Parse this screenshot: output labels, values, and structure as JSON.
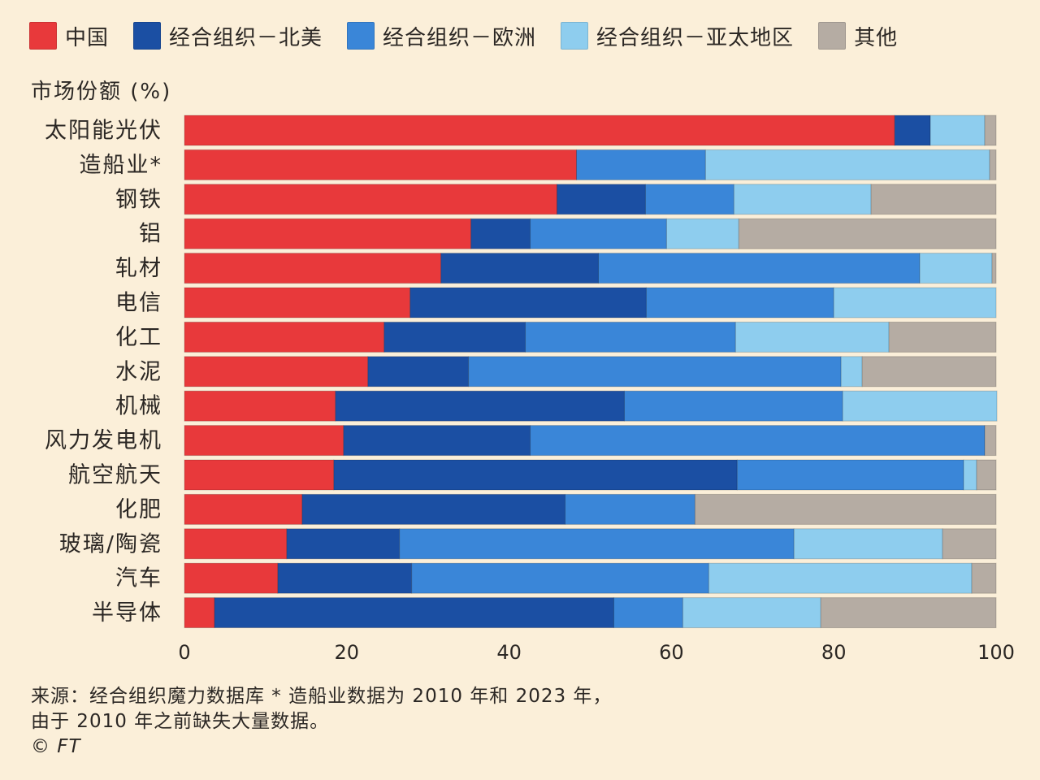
{
  "chart_data": {
    "type": "bar",
    "orientation": "horizontal",
    "stacked": true,
    "ylabel": "市场份额 (%)",
    "xlim": [
      0,
      100
    ],
    "x_ticks": [
      0,
      20,
      40,
      60,
      80,
      100
    ],
    "legend_placement": "top",
    "categories": [
      "太阳能光伏",
      "造船业*",
      "钢铁",
      "铝",
      "轧材",
      "电信",
      "化工",
      "水泥",
      "机械",
      "风力发电机",
      "航空航天",
      "化肥",
      "玻璃/陶瓷",
      "汽车",
      "半导体"
    ],
    "series": [
      {
        "name": "中国",
        "color": "#e8393b",
        "values": [
          87.5,
          48.3,
          45.9,
          35.3,
          31.6,
          27.8,
          24.6,
          22.6,
          18.6,
          19.6,
          18.4,
          14.5,
          12.6,
          11.5,
          3.7
        ]
      },
      {
        "name": "经合组织－北美",
        "color": "#1b4fa3",
        "values": [
          4.4,
          0.0,
          10.9,
          7.3,
          19.4,
          29.1,
          17.4,
          12.4,
          35.6,
          23.0,
          49.7,
          32.4,
          13.9,
          16.5,
          49.2
        ]
      },
      {
        "name": "经合组织－欧洲",
        "color": "#3a86d8",
        "values": [
          0.0,
          15.9,
          10.9,
          16.8,
          39.6,
          23.1,
          25.9,
          45.9,
          26.9,
          56.0,
          27.9,
          16.0,
          48.6,
          36.6,
          8.5
        ]
      },
      {
        "name": "经合组织－亚太地区",
        "color": "#8ecdee",
        "values": [
          6.7,
          35.0,
          16.9,
          8.9,
          8.9,
          20.0,
          18.9,
          2.6,
          19.0,
          0.0,
          1.6,
          0.0,
          18.3,
          32.4,
          17.0
        ]
      },
      {
        "name": "其他",
        "color": "#b5aca3",
        "values": [
          1.4,
          0.8,
          15.4,
          31.7,
          0.5,
          0.0,
          13.2,
          16.5,
          0.0,
          1.4,
          2.4,
          37.1,
          6.6,
          3.0,
          21.6
        ]
      }
    ]
  },
  "footer": {
    "source_line1": "来源：经合组织魔力数据库 * 造船业数据为 2010 年和 2023 年，",
    "source_line2": "由于 2010 年之前缺失大量数据。",
    "credit": "© FT"
  }
}
